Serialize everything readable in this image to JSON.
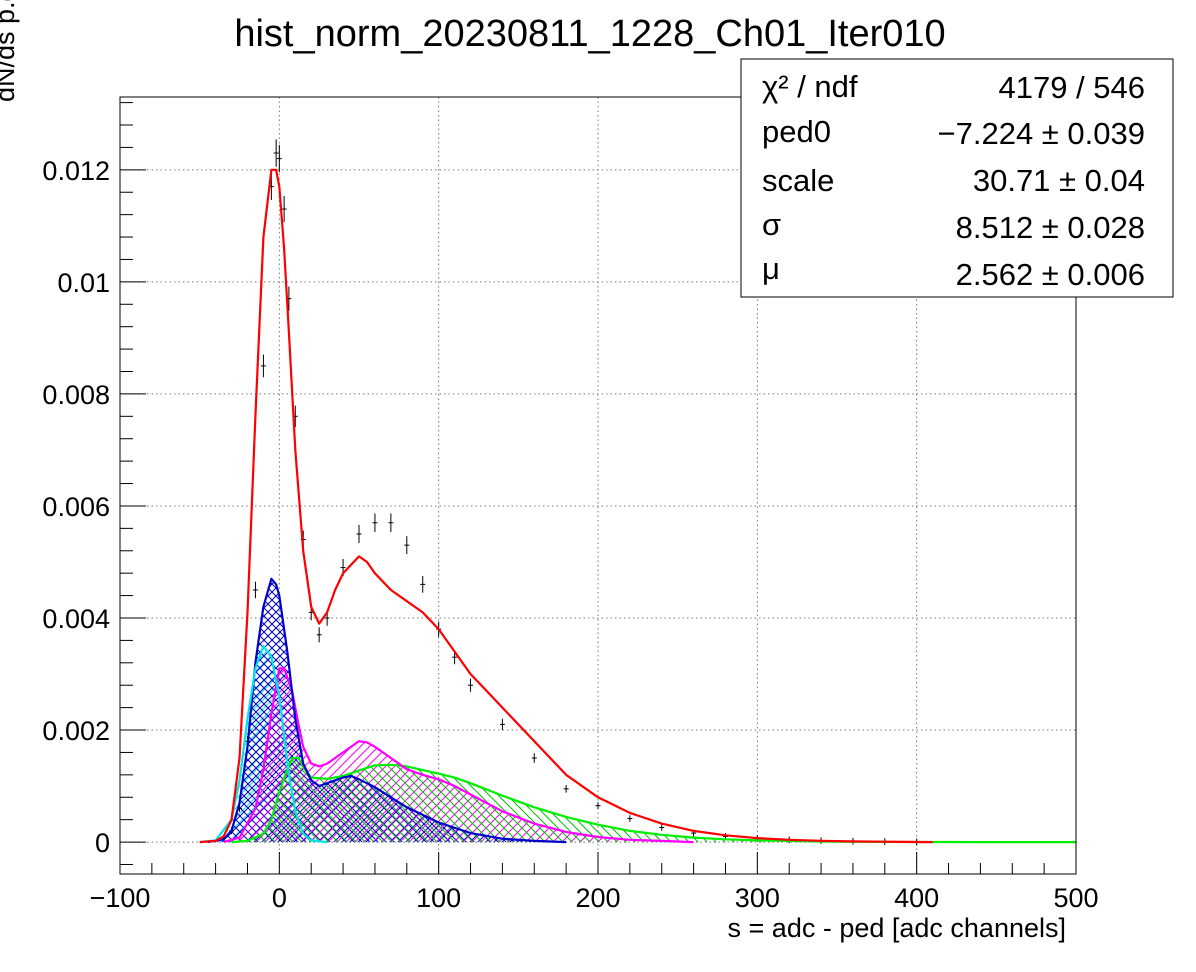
{
  "chart_data": {
    "type": "line",
    "title": "hist_norm_20230811_1228_Ch01_Iter010",
    "xlabel": "s = adc - ped [adc channels]",
    "ylabel": "dN/ds p.d.f. [a.u.]",
    "xlim": [
      -100,
      500
    ],
    "ylim": [
      -0.00057,
      0.0133
    ],
    "grid": true,
    "x_ticks": [
      "−100",
      "0",
      "100",
      "200",
      "300",
      "400",
      "500"
    ],
    "y_ticks": [
      "0",
      "0.002",
      "0.004",
      "0.006",
      "0.008",
      "0.01",
      "0.012"
    ],
    "stats_box": {
      "position": "top-right",
      "rows": [
        {
          "label": "χ² / ndf",
          "value": "4179 / 546"
        },
        {
          "label": "ped0",
          "value": "−7.224 ± 0.039"
        },
        {
          "label": "scale",
          "value": "30.71 ± 0.04"
        },
        {
          "label": "σ",
          "value": "8.512 ± 0.028"
        },
        {
          "label": "μ",
          "value": "2.562 ± 0.006"
        }
      ]
    },
    "series": [
      {
        "kind": "data_points",
        "color": "#000000",
        "x": [
          -30,
          -25,
          -20,
          -15,
          -10,
          -5,
          -2,
          0,
          3,
          6,
          10,
          15,
          20,
          25,
          30,
          40,
          50,
          60,
          70,
          80,
          90,
          100,
          110,
          120,
          140,
          160,
          180,
          200,
          220,
          240,
          260,
          280,
          300,
          320,
          340,
          360,
          380,
          400
        ],
        "y": [
          0.0002,
          0.0006,
          0.0018,
          0.0045,
          0.0085,
          0.0117,
          0.0123,
          0.0122,
          0.0113,
          0.0097,
          0.0076,
          0.0054,
          0.0041,
          0.0037,
          0.004,
          0.0049,
          0.0055,
          0.0057,
          0.0057,
          0.0053,
          0.0046,
          0.0038,
          0.0033,
          0.0028,
          0.0021,
          0.0015,
          0.00095,
          0.00065,
          0.00042,
          0.00026,
          0.00016,
          0.0001,
          6e-05,
          4e-05,
          2.5e-05,
          1.5e-05,
          8e-06,
          4e-06
        ]
      },
      {
        "kind": "fit_total",
        "color": "#ff0000",
        "x": [
          -50,
          -40,
          -35,
          -30,
          -25,
          -20,
          -15,
          -10,
          -5,
          -2,
          0,
          3,
          6,
          10,
          15,
          20,
          25,
          30,
          35,
          40,
          50,
          55,
          60,
          70,
          80,
          90,
          100,
          110,
          120,
          130,
          140,
          160,
          180,
          200,
          220,
          240,
          260,
          280,
          300,
          320,
          340,
          360,
          380,
          400,
          410
        ],
        "y": [
          0,
          2e-05,
          0.0001,
          0.0004,
          0.0015,
          0.0041,
          0.0076,
          0.0108,
          0.012,
          0.012,
          0.0117,
          0.0106,
          0.0091,
          0.007,
          0.0052,
          0.0042,
          0.0039,
          0.0041,
          0.0045,
          0.0048,
          0.0051,
          0.005,
          0.0048,
          0.0045,
          0.0043,
          0.0041,
          0.0038,
          0.0034,
          0.003,
          0.0027,
          0.0024,
          0.0018,
          0.0012,
          0.0008,
          0.00052,
          0.00033,
          0.0002,
          0.00012,
          7e-05,
          4e-05,
          2.2e-05,
          1.2e-05,
          6e-06,
          2e-06,
          0
        ]
      },
      {
        "kind": "component",
        "color": "#00e5e5",
        "fill": "hatched",
        "x": [
          -50,
          -40,
          -30,
          -25,
          -20,
          -15,
          -10,
          -5,
          0,
          3,
          6,
          10,
          15,
          20,
          30
        ],
        "y": [
          0,
          3e-05,
          0.0004,
          0.0011,
          0.0022,
          0.0031,
          0.0035,
          0.0033,
          0.0026,
          0.0019,
          0.0012,
          0.00055,
          0.00015,
          3e-05,
          0
        ]
      },
      {
        "kind": "component",
        "color": "#0000cc",
        "fill": "hatched",
        "x": [
          -45,
          -35,
          -30,
          -25,
          -20,
          -15,
          -10,
          -5,
          -2,
          0,
          5,
          10,
          15,
          20,
          25,
          30,
          40,
          45,
          50,
          60,
          70,
          80,
          100,
          120,
          140,
          160,
          180
        ],
        "y": [
          0,
          5e-05,
          0.0002,
          0.0007,
          0.0017,
          0.0032,
          0.0042,
          0.0047,
          0.0046,
          0.0044,
          0.0034,
          0.0022,
          0.0014,
          0.0011,
          0.001,
          0.00105,
          0.00115,
          0.00118,
          0.00112,
          0.00098,
          0.0008,
          0.00062,
          0.00035,
          0.00016,
          6e-05,
          2e-05,
          0
        ]
      },
      {
        "kind": "component",
        "color": "#ff00ff",
        "fill": "hatched",
        "x": [
          -35,
          -25,
          -15,
          -10,
          -5,
          0,
          3,
          8,
          12,
          15,
          20,
          25,
          30,
          40,
          50,
          55,
          60,
          70,
          80,
          90,
          100,
          110,
          120,
          140,
          160,
          180,
          200,
          220,
          240,
          260
        ],
        "y": [
          0,
          8e-05,
          0.0006,
          0.0013,
          0.0023,
          0.0031,
          0.0031,
          0.0027,
          0.0021,
          0.0017,
          0.0014,
          0.00135,
          0.0014,
          0.0016,
          0.0018,
          0.00178,
          0.0017,
          0.0015,
          0.0013,
          0.0012,
          0.00112,
          0.001,
          0.00085,
          0.00055,
          0.00033,
          0.00018,
          9e-05,
          4e-05,
          2e-05,
          0
        ]
      },
      {
        "kind": "component",
        "color": "#00ee00",
        "fill": "hatched",
        "x": [
          -30,
          -20,
          -10,
          -5,
          0,
          5,
          8,
          12,
          16,
          20,
          30,
          40,
          50,
          60,
          70,
          80,
          100,
          110,
          120,
          140,
          160,
          180,
          200,
          220,
          240,
          260,
          280,
          300,
          320,
          340,
          360,
          380,
          400,
          420,
          440,
          460,
          480,
          500
        ],
        "y": [
          0,
          2e-05,
          0.00015,
          0.0004,
          0.0009,
          0.0013,
          0.0015,
          0.0015,
          0.0013,
          0.00115,
          0.00113,
          0.00118,
          0.00128,
          0.00137,
          0.00138,
          0.00135,
          0.00122,
          0.00115,
          0.00105,
          0.00083,
          0.00062,
          0.00045,
          0.00031,
          0.0002,
          0.00013,
          8e-05,
          5e-05,
          3e-05,
          2e-05,
          1e-05,
          5e-06,
          3e-06,
          2e-06,
          1e-06,
          0,
          0,
          0,
          0
        ]
      }
    ]
  }
}
